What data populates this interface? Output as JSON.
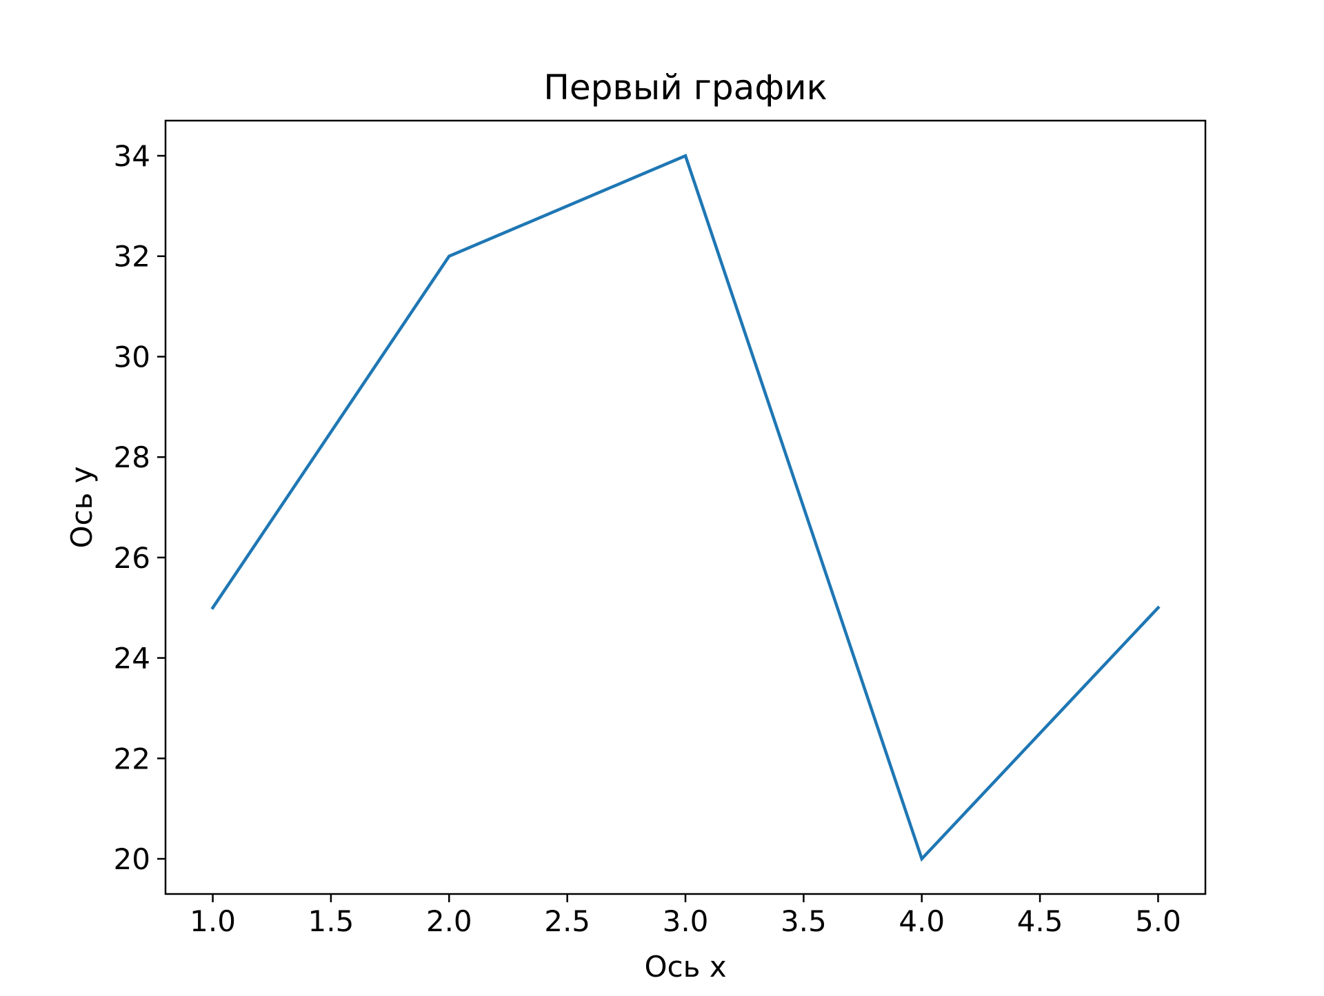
{
  "chart_data": {
    "type": "line",
    "title": "Первый график",
    "xlabel": "Ось x",
    "ylabel": "Ось y",
    "xlim": [
      0.8,
      5.2
    ],
    "ylim": [
      19.3,
      34.7
    ],
    "xticks": [
      1.0,
      1.5,
      2.0,
      2.5,
      3.0,
      3.5,
      4.0,
      4.5,
      5.0
    ],
    "xtick_labels": [
      "1.0",
      "1.5",
      "2.0",
      "2.5",
      "3.0",
      "3.5",
      "4.0",
      "4.5",
      "5.0"
    ],
    "yticks": [
      20,
      22,
      24,
      26,
      28,
      30,
      32,
      34
    ],
    "ytick_labels": [
      "20",
      "22",
      "24",
      "26",
      "28",
      "30",
      "32",
      "34"
    ],
    "grid": false,
    "series": [
      {
        "color": "#1f77b4",
        "x": [
          1,
          2,
          3,
          4,
          5
        ],
        "y": [
          25,
          32,
          34,
          20,
          25
        ]
      }
    ]
  }
}
